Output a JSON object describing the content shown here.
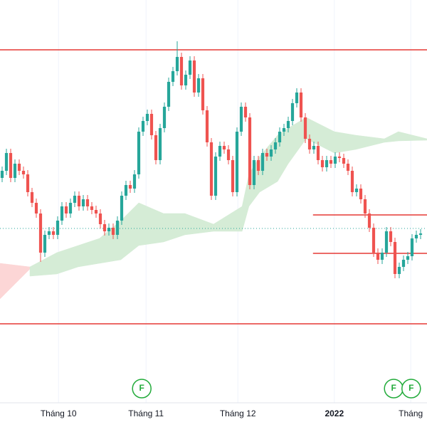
{
  "chart_data": {
    "type": "candlestick",
    "xlim": [
      -0.5,
      99.5
    ],
    "ylim": [
      0,
      600
    ],
    "xticks": [
      {
        "value": 13.2,
        "label": "Tháng 10"
      },
      {
        "value": 33.7,
        "label": "Tháng 11"
      },
      {
        "value": 55.2,
        "label": "Tháng 12"
      },
      {
        "value": 77.8,
        "label": "2022"
      },
      {
        "value": 95.7,
        "label": "Tháng"
      }
    ],
    "up_color": "#26a69a",
    "down_color": "#ef5350",
    "open": [
      350,
      360,
      385,
      350,
      370,
      360,
      355,
      330,
      315,
      300,
      245,
      270,
      275,
      270,
      290,
      310,
      300,
      315,
      325,
      310,
      320,
      310,
      305,
      300,
      285,
      275,
      280,
      270,
      290,
      325,
      340,
      335,
      355,
      415,
      430,
      440,
      410,
      375,
      420,
      450,
      485,
      500,
      520,
      480,
      495,
      515,
      470,
      490,
      445,
      400,
      325,
      380,
      395,
      390,
      375,
      330,
      415,
      450,
      435,
      340,
      375,
      360,
      385,
      380,
      390,
      400,
      415,
      420,
      430,
      455,
      470,
      435,
      405,
      390,
      395,
      375,
      365,
      375,
      370,
      380,
      378,
      370,
      360,
      330,
      335,
      320,
      300,
      280,
      245,
      235,
      245,
      275,
      260,
      215,
      225,
      235,
      240,
      265,
      270
    ],
    "high": [
      366,
      391,
      391,
      376,
      376,
      366,
      361,
      336,
      321,
      306,
      276,
      281,
      281,
      296,
      316,
      316,
      321,
      331,
      331,
      326,
      326,
      316,
      311,
      306,
      291,
      286,
      286,
      296,
      331,
      346,
      346,
      361,
      421,
      436,
      446,
      446,
      416,
      426,
      456,
      491,
      506,
      542,
      526,
      501,
      521,
      521,
      496,
      496,
      451,
      406,
      386,
      401,
      401,
      396,
      381,
      421,
      456,
      456,
      441,
      381,
      381,
      391,
      391,
      396,
      406,
      421,
      426,
      436,
      461,
      476,
      476,
      441,
      411,
      401,
      401,
      381,
      381,
      381,
      386,
      386,
      384,
      376,
      366,
      341,
      341,
      326,
      306,
      286,
      251,
      251,
      281,
      281,
      266,
      231,
      241,
      246,
      271,
      276,
      278
    ],
    "low": [
      344,
      354,
      344,
      344,
      354,
      349,
      324,
      309,
      294,
      232,
      239,
      264,
      264,
      264,
      284,
      294,
      294,
      309,
      304,
      304,
      304,
      299,
      294,
      279,
      269,
      269,
      264,
      264,
      284,
      319,
      329,
      329,
      349,
      409,
      424,
      404,
      369,
      369,
      414,
      444,
      479,
      494,
      474,
      474,
      489,
      464,
      464,
      439,
      394,
      319,
      319,
      374,
      384,
      369,
      324,
      324,
      409,
      429,
      334,
      334,
      354,
      354,
      374,
      374,
      384,
      394,
      409,
      414,
      424,
      449,
      429,
      399,
      384,
      384,
      369,
      359,
      359,
      364,
      364,
      372,
      364,
      354,
      324,
      324,
      314,
      294,
      274,
      239,
      229,
      229,
      239,
      254,
      209,
      209,
      219,
      229,
      234,
      259,
      264
    ],
    "close": [
      360,
      385,
      350,
      370,
      360,
      355,
      330,
      315,
      300,
      245,
      270,
      275,
      270,
      290,
      310,
      300,
      315,
      325,
      310,
      320,
      310,
      305,
      300,
      285,
      275,
      280,
      270,
      290,
      325,
      340,
      335,
      355,
      415,
      430,
      440,
      410,
      375,
      420,
      450,
      485,
      500,
      520,
      480,
      495,
      515,
      470,
      490,
      445,
      400,
      325,
      380,
      395,
      390,
      375,
      330,
      415,
      450,
      435,
      340,
      375,
      360,
      385,
      380,
      390,
      400,
      415,
      420,
      430,
      455,
      470,
      435,
      405,
      390,
      395,
      375,
      365,
      375,
      370,
      380,
      378,
      370,
      360,
      330,
      335,
      320,
      300,
      280,
      245,
      235,
      245,
      275,
      260,
      215,
      225,
      235,
      240,
      265,
      270,
      272
    ],
    "clouds": [
      {
        "color": "#fcd6d6",
        "x": [
          -0.5,
          6.5
        ],
        "upper": [
          230,
          225
        ],
        "lower": [
          180,
          222
        ]
      },
      {
        "color": "#d5ecd6",
        "x": [
          6.5,
          12.8,
          17.8,
          22.8,
          27.8,
          32,
          37.8,
          42.8,
          49.5,
          56.2,
          57.8,
          60.3,
          64.5,
          67,
          71.2,
          77.8,
          82.8,
          89.5,
          92.8,
          99.5
        ],
        "upper": [
          225,
          245,
          255,
          265,
          290,
          315,
          300,
          300,
          285,
          310,
          355,
          380,
          410,
          420,
          435,
          415,
          410,
          405,
          415,
          405
        ],
        "lower": [
          212,
          215,
          225,
          230,
          235,
          255,
          260,
          270,
          275,
          275,
          310,
          330,
          345,
          370,
          405,
          385,
          390,
          400,
          402,
          403
        ]
      }
    ],
    "levels": [
      {
        "value": 530,
        "from": -0.5,
        "color": "#e53935"
      },
      {
        "value": 145,
        "from": -0.5,
        "color": "#e53935"
      },
      {
        "value": 298,
        "from": 72.8,
        "color": "#e53935"
      },
      {
        "value": 244,
        "from": 72.8,
        "color": "#e53935"
      },
      {
        "value": 279,
        "from": -0.5,
        "color": "#26a69a",
        "dashed": true
      }
    ],
    "events": [
      {
        "x": 32.7,
        "label": "F"
      },
      {
        "x": 91.7,
        "label": "F"
      },
      {
        "x": 95.8,
        "label": "F"
      }
    ],
    "event_color": "#22ab3a"
  }
}
